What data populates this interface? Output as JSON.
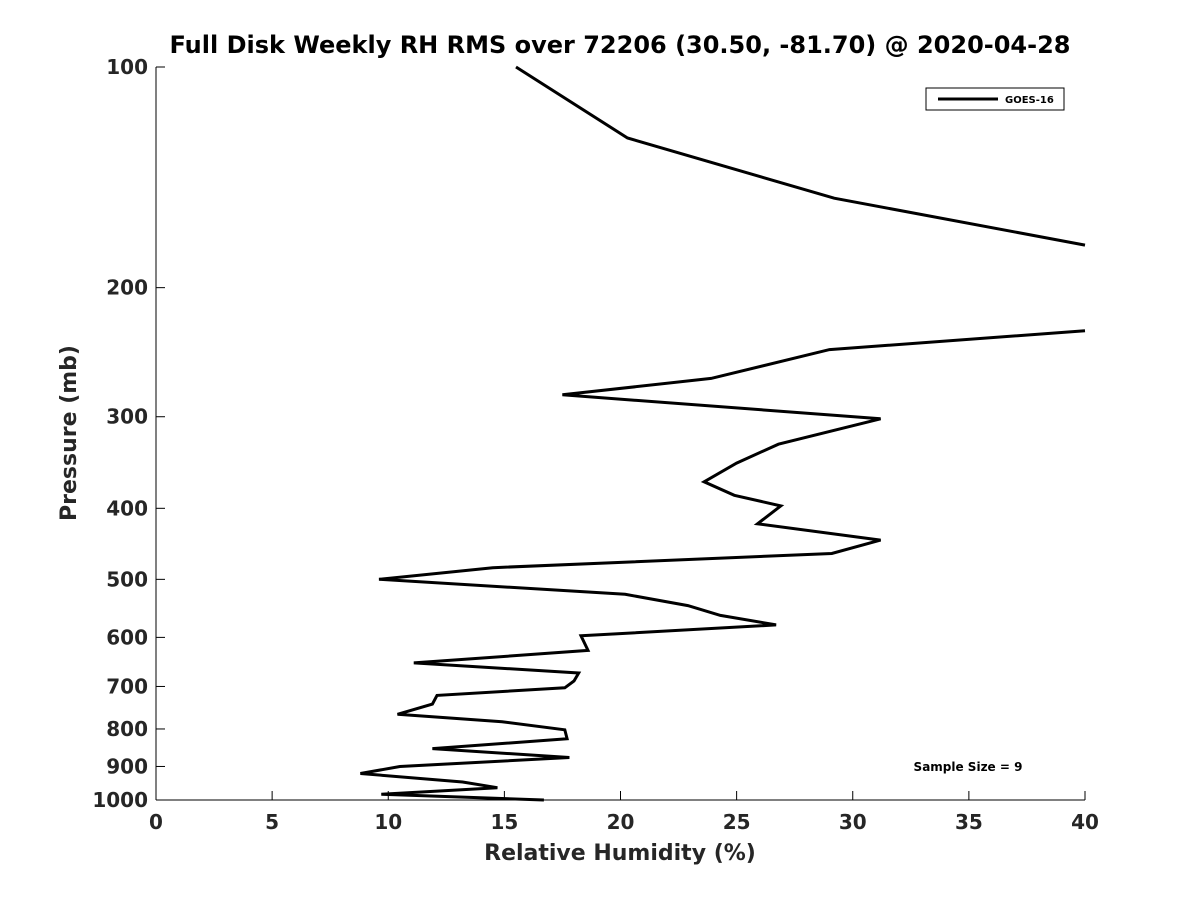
{
  "chart_data": {
    "type": "line",
    "title": "Full Disk Weekly RH RMS over 72206 (30.50, -81.70) @ 2020-04-28",
    "xlabel": "Relative Humidity (%)",
    "ylabel": "Pressure (mb)",
    "xlim": [
      0,
      40
    ],
    "ylim": [
      100,
      1000
    ],
    "y_scale": "log",
    "y_reversed": true,
    "grid": false,
    "legend_position": "top-right",
    "x_ticks": [
      0,
      5,
      10,
      15,
      20,
      25,
      30,
      35,
      40
    ],
    "x_tick_labels": [
      "0",
      "5",
      "10",
      "15",
      "20",
      "25",
      "30",
      "35",
      "40"
    ],
    "y_ticks": [
      100,
      200,
      300,
      400,
      500,
      600,
      700,
      800,
      900,
      1000
    ],
    "y_tick_labels": [
      "100",
      "200",
      "300",
      "400",
      "500",
      "600",
      "700",
      "800",
      "900",
      "1000"
    ],
    "annotation": "Sample Size = 9",
    "series": [
      {
        "name": "GOES-16",
        "color": "#000000",
        "segments": [
          [
            [
              15.5,
              100
            ],
            [
              20.3,
              125
            ],
            [
              29.2,
              151
            ],
            [
              40,
              175
            ]
          ],
          [
            [
              40,
              229
            ],
            [
              29.0,
              243
            ],
            [
              23.9,
              266
            ],
            [
              17.5,
              280
            ],
            [
              31.2,
              302
            ],
            [
              26.8,
              327
            ],
            [
              25.0,
              347
            ],
            [
              23.6,
              368
            ],
            [
              24.9,
              384
            ],
            [
              26.9,
              397
            ],
            [
              25.9,
              420
            ],
            [
              31.2,
              442
            ],
            [
              29.1,
              461
            ],
            [
              14.5,
              482
            ],
            [
              9.6,
              500
            ],
            [
              20.2,
              524
            ],
            [
              22.9,
              543
            ],
            [
              24.3,
              560
            ],
            [
              26.7,
              577
            ],
            [
              18.3,
              597
            ],
            [
              18.6,
              625
            ],
            [
              11.1,
              650
            ],
            [
              18.2,
              671
            ],
            [
              18.0,
              688
            ],
            [
              17.6,
              703
            ],
            [
              12.1,
              720
            ],
            [
              11.9,
              740
            ],
            [
              10.4,
              764
            ],
            [
              14.9,
              782
            ],
            [
              17.6,
              802
            ],
            [
              17.7,
              825
            ],
            [
              11.9,
              851
            ],
            [
              17.8,
              875
            ],
            [
              10.5,
              900
            ],
            [
              8.8,
              920
            ],
            [
              13.2,
              945
            ],
            [
              14.7,
              962
            ],
            [
              9.7,
              982
            ],
            [
              16.7,
              1000
            ]
          ]
        ]
      }
    ]
  }
}
